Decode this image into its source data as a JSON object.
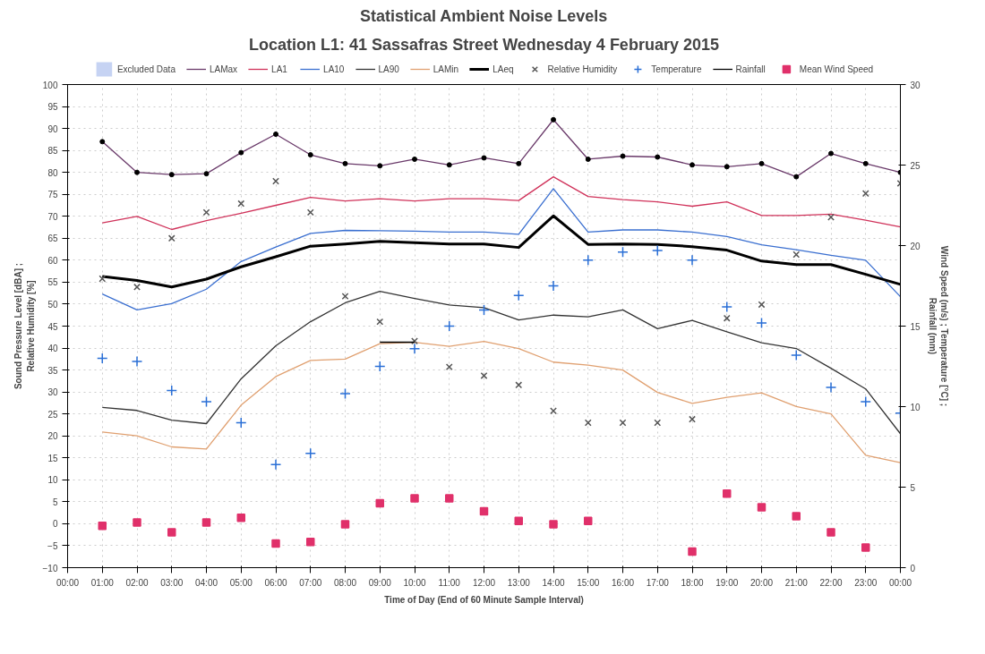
{
  "chart_data": {
    "type": "line",
    "title": "Statistical Ambient Noise Levels",
    "subtitle": "Location L1: 41 Sassafras Street Wednesday 4 February 2015",
    "xlabel": "Time of Day (End of 60 Minute Sample Interval)",
    "ylabel": "Sound Pressure Level [dBA] ;\nRelative Humidity [%]",
    "y2label": "Wind Speed (m/s) ; Temperature [°C] ;\nRainfall (mm)",
    "x": [
      1,
      2,
      3,
      4,
      5,
      6,
      7,
      8,
      9,
      10,
      11,
      12,
      13,
      14,
      15,
      16,
      17,
      18,
      19,
      20,
      21,
      22,
      23,
      24
    ],
    "xlim": [
      0,
      24
    ],
    "xticks": [
      {
        "value": 0,
        "label": "00:00"
      },
      {
        "value": 1,
        "label": "01:00"
      },
      {
        "value": 2,
        "label": "02:00"
      },
      {
        "value": 3,
        "label": "03:00"
      },
      {
        "value": 4,
        "label": "04:00"
      },
      {
        "value": 5,
        "label": "05:00"
      },
      {
        "value": 6,
        "label": "06:00"
      },
      {
        "value": 7,
        "label": "07:00"
      },
      {
        "value": 8,
        "label": "08:00"
      },
      {
        "value": 9,
        "label": "09:00"
      },
      {
        "value": 10,
        "label": "10:00"
      },
      {
        "value": 11,
        "label": "11:00"
      },
      {
        "value": 12,
        "label": "12:00"
      },
      {
        "value": 13,
        "label": "13:00"
      },
      {
        "value": 14,
        "label": "14:00"
      },
      {
        "value": 15,
        "label": "15:00"
      },
      {
        "value": 16,
        "label": "16:00"
      },
      {
        "value": 17,
        "label": "17:00"
      },
      {
        "value": 18,
        "label": "18:00"
      },
      {
        "value": 19,
        "label": "19:00"
      },
      {
        "value": 20,
        "label": "20:00"
      },
      {
        "value": 21,
        "label": "21:00"
      },
      {
        "value": 22,
        "label": "22:00"
      },
      {
        "value": 23,
        "label": "23:00"
      },
      {
        "value": 24,
        "label": "00:00"
      }
    ],
    "ylim": [
      -10,
      100
    ],
    "yticks": [
      -10,
      -5,
      0,
      5,
      10,
      15,
      20,
      25,
      30,
      35,
      40,
      45,
      50,
      55,
      60,
      65,
      70,
      75,
      80,
      85,
      90,
      95,
      100
    ],
    "y2lim": [
      0,
      30
    ],
    "y2ticks": [
      0,
      5,
      10,
      15,
      20,
      25,
      30
    ],
    "grid": true,
    "legend": "top",
    "series": [
      {
        "name": "Excluded Data",
        "type": "area",
        "color": "#b8c8f0",
        "values": [
          null,
          null,
          null,
          null,
          null,
          null,
          null,
          null,
          null,
          null,
          null,
          null,
          null,
          null,
          null,
          null,
          null,
          null,
          null,
          null,
          null,
          null,
          null,
          null
        ]
      },
      {
        "name": "LAMax",
        "color": "#6a3a6a",
        "marker": "circle",
        "values": [
          87,
          80,
          79.5,
          79.7,
          84.5,
          88.7,
          84,
          82,
          81.5,
          83,
          81.7,
          83.3,
          82,
          92,
          83,
          83.7,
          83.5,
          81.7,
          81.3,
          82,
          79,
          84.3,
          82,
          80
        ]
      },
      {
        "name": "LA1",
        "color": "#d0325a",
        "values": [
          68.5,
          70,
          67,
          69,
          70.7,
          72.5,
          74.3,
          73.5,
          74,
          73.5,
          74,
          74,
          73.6,
          79,
          74.5,
          73.8,
          73.3,
          72.3,
          73.3,
          70.2,
          70.2,
          70.5,
          69.1,
          67.6
        ]
      },
      {
        "name": "LA10",
        "color": "#3a6fd0",
        "values": [
          52.3,
          48.7,
          50.1,
          53.4,
          59.7,
          63,
          66.1,
          66.8,
          66.7,
          66.6,
          66.4,
          66.4,
          65.9,
          76.3,
          66.4,
          66.9,
          66.9,
          66.4,
          65.4,
          63.5,
          62.4,
          61.1,
          60,
          51.7
        ]
      },
      {
        "name": "LA90",
        "color": "#333333",
        "values": [
          26.5,
          25.8,
          23.6,
          22.8,
          33,
          40.5,
          46,
          50.3,
          52.9,
          51.3,
          49.8,
          49.2,
          46.4,
          47.5,
          47.1,
          48.7,
          44.4,
          46.3,
          43.7,
          41.2,
          39.9,
          35.4,
          30.7,
          20.5
        ]
      },
      {
        "name": "LAMin",
        "color": "#e0a070",
        "values": [
          20.9,
          20,
          17.5,
          17,
          27,
          33.5,
          37.2,
          37.5,
          41,
          41.3,
          40.4,
          41.5,
          39.9,
          36.8,
          36.1,
          35,
          29.9,
          27.4,
          28.8,
          29.8,
          26.7,
          25,
          15.6,
          13.9
        ]
      },
      {
        "name": "LAeq",
        "color": "#000000",
        "values": [
          56.3,
          55.4,
          53.9,
          55.7,
          58.5,
          60.8,
          63.2,
          63.7,
          64.3,
          64,
          63.7,
          63.7,
          62.9,
          70.1,
          63.6,
          63.7,
          63.6,
          63.1,
          62.3,
          59.8,
          59,
          59,
          56.8,
          54.5
        ]
      },
      {
        "name": "Relative Humidity",
        "type": "scatter",
        "color": "#555555",
        "marker": "x",
        "values": [
          55.8,
          53.9,
          65,
          70.9,
          72.9,
          78,
          70.9,
          51.8,
          46,
          41.6,
          35.7,
          33.7,
          31.6,
          25.7,
          23,
          23,
          23,
          23.8,
          46.8,
          49.9,
          61.3,
          69.8,
          75.2,
          77.5
        ]
      },
      {
        "name": "Temperature",
        "type": "scatter",
        "color": "#2a6fd6",
        "marker": "cross",
        "axis": "y2",
        "values": [
          13,
          12.8,
          11,
          10.3,
          9,
          6.4,
          7.1,
          10.8,
          12.5,
          13.6,
          15,
          16,
          16.9,
          17.5,
          19.1,
          19.6,
          19.7,
          19.1,
          16.2,
          15.2,
          13.2,
          11.2,
          10.3,
          9.6
        ]
      },
      {
        "name": "Rainfall",
        "color": "#000000",
        "axis": "y2",
        "x": [
          9,
          10
        ],
        "values": [
          14,
          14
        ]
      },
      {
        "name": "Mean Wind Speed",
        "type": "scatter",
        "color": "#e0306a",
        "marker": "square",
        "axis": "y2",
        "values": [
          2.6,
          2.8,
          2.2,
          2.8,
          3.1,
          1.5,
          1.6,
          2.7,
          4,
          4.3,
          4.3,
          3.5,
          2.9,
          2.7,
          2.9,
          null,
          null,
          1,
          4.6,
          3.75,
          3.2,
          2.2,
          1.25,
          null
        ]
      }
    ]
  }
}
